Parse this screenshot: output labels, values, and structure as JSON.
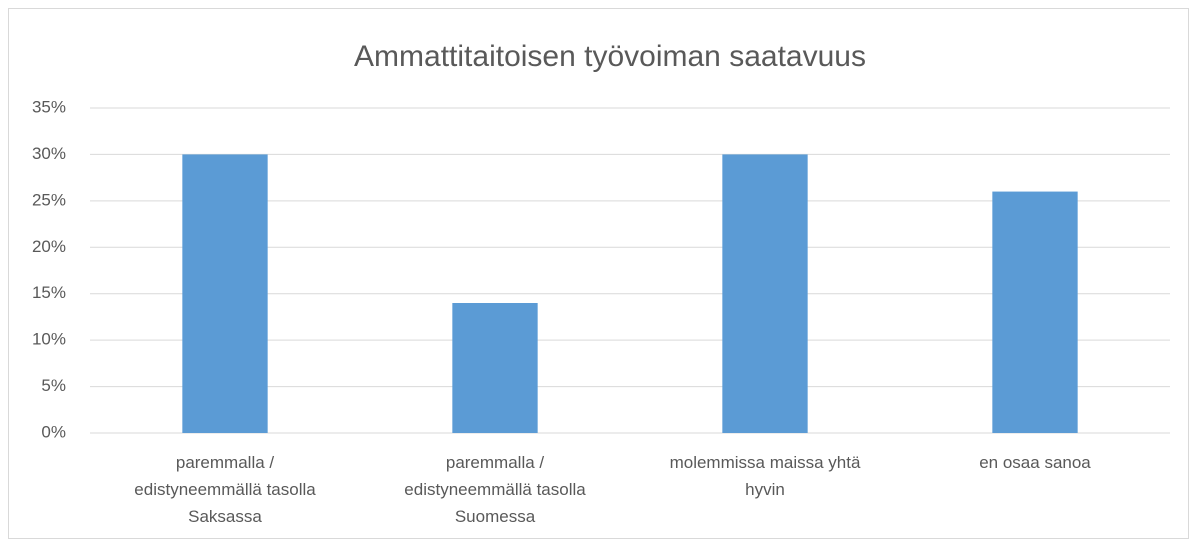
{
  "chart_data": {
    "type": "bar",
    "title": "Ammattitaitoisen työvoiman saatavuus",
    "categories": [
      "paremmalla / edistyneemmällä tasolla Saksassa",
      "paremmalla / edistyneemmällä tasolla Suomessa",
      "molemmissa maissa yhtä hyvin",
      "en osaa sanoa"
    ],
    "values": [
      30,
      14,
      30,
      26
    ],
    "color": "#5b9bd5",
    "ylim": [
      0,
      35
    ],
    "yticks": [
      {
        "value": 0,
        "label": "0%"
      },
      {
        "value": 5,
        "label": "5%"
      },
      {
        "value": 10,
        "label": "10%"
      },
      {
        "value": 15,
        "label": "15%"
      },
      {
        "value": 20,
        "label": "20%"
      },
      {
        "value": 25,
        "label": "25%"
      },
      {
        "value": 30,
        "label": "30%"
      },
      {
        "value": 35,
        "label": "35%"
      }
    ],
    "grid": true
  }
}
